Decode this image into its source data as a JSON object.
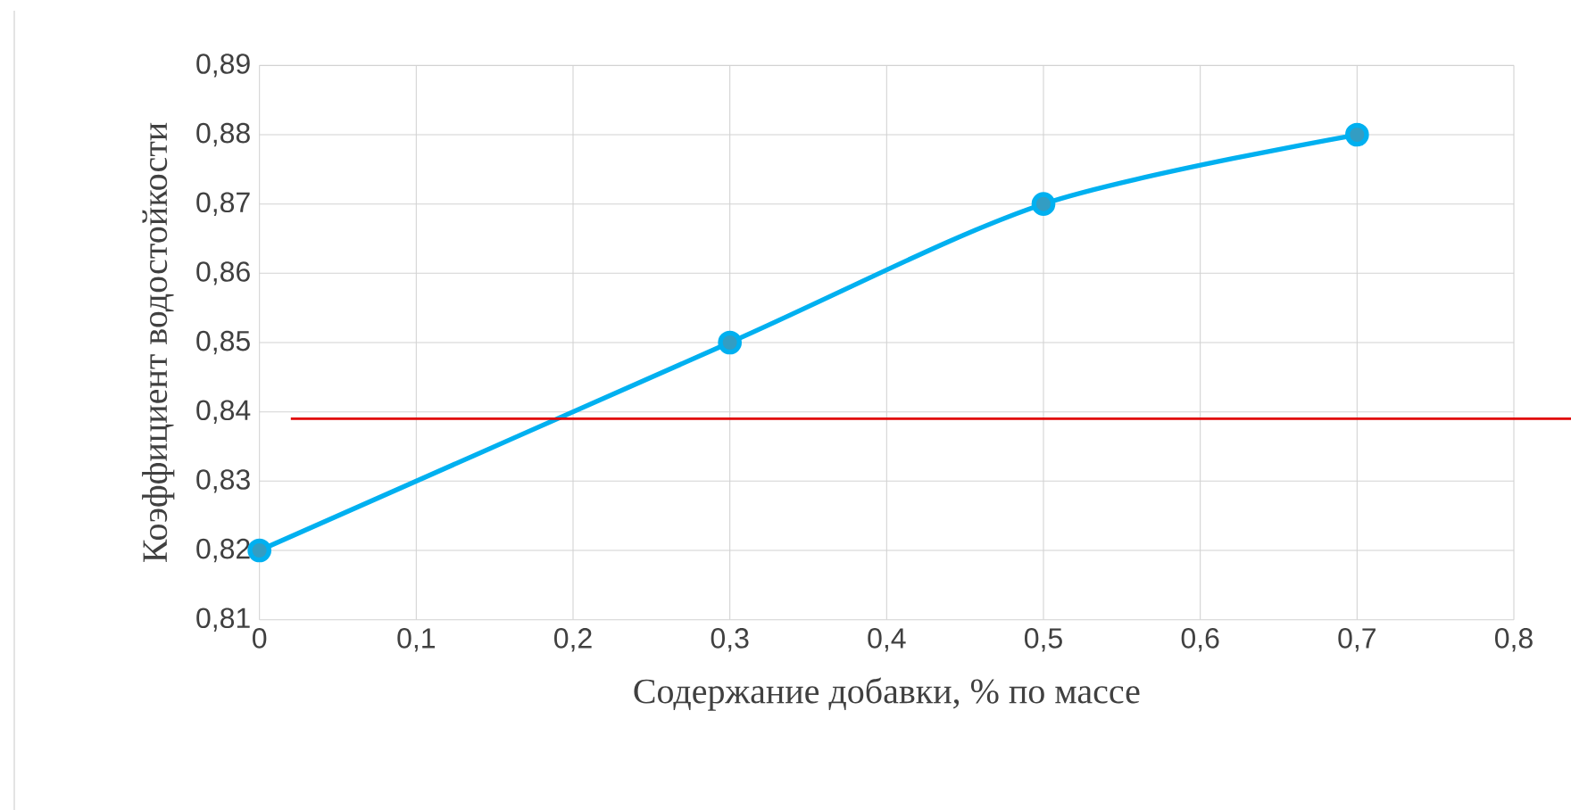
{
  "chart_data": {
    "type": "line",
    "xlabel": "Содержание добавки, % по массе",
    "ylabel": "Коэффициент водостойкости",
    "x": [
      0,
      0.3,
      0.5,
      0.7
    ],
    "series": [
      {
        "color": "#00b0f0",
        "values": [
          0.82,
          0.85,
          0.87,
          0.88
        ]
      }
    ],
    "xlim": [
      0,
      0.8
    ],
    "xticks": [
      0,
      {
        "value": 0.1,
        "label": "0,1"
      },
      {
        "value": 0.2,
        "label": "0,2"
      },
      {
        "value": 0.3,
        "label": "0,3"
      },
      {
        "value": 0.4,
        "label": "0,4"
      },
      {
        "value": 0.5,
        "label": "0,5"
      },
      {
        "value": 0.6,
        "label": "0,6"
      },
      {
        "value": 0.7,
        "label": "0,7"
      },
      {
        "value": 0.8,
        "label": "0,8"
      }
    ],
    "ylim": [
      0.81,
      0.89
    ],
    "yticks": [
      {
        "value": 0.81,
        "label": "0,81"
      },
      {
        "value": 0.82,
        "label": "0,82"
      },
      {
        "value": 0.83,
        "label": "0,83"
      },
      {
        "value": 0.84,
        "label": "0,84"
      },
      {
        "value": 0.85,
        "label": "0,85"
      },
      {
        "value": 0.86,
        "label": "0,86"
      },
      {
        "value": 0.87,
        "label": "0,87"
      },
      {
        "value": 0.88,
        "label": "0,88"
      },
      {
        "value": 0.89,
        "label": "0,89"
      }
    ],
    "ref_lines": [
      {
        "axis": "y",
        "value": 0.839,
        "color": "#e00000"
      }
    ],
    "grid": true,
    "marker": "circle",
    "line_style": "solid"
  }
}
